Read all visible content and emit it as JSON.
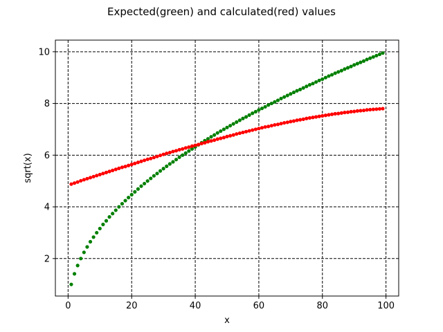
{
  "chart_data": {
    "type": "scatter",
    "title": "Expected(green) and calculated(red) values",
    "xlabel": "x",
    "ylabel": "sqrt(x)",
    "xlim": [
      -4,
      104
    ],
    "ylim": [
      0.55,
      10.45
    ],
    "xticks": [
      0,
      20,
      40,
      60,
      80,
      100
    ],
    "yticks": [
      2,
      4,
      6,
      8,
      10
    ],
    "xtick_labels": [
      "0",
      "20",
      "40",
      "60",
      "80",
      "100"
    ],
    "ytick_labels": [
      "2",
      "4",
      "6",
      "8",
      "10"
    ],
    "grid": true,
    "grid_style": "dashed",
    "x": [
      1,
      2,
      3,
      4,
      5,
      6,
      7,
      8,
      9,
      10,
      11,
      12,
      13,
      14,
      15,
      16,
      17,
      18,
      19,
      20,
      21,
      22,
      23,
      24,
      25,
      26,
      27,
      28,
      29,
      30,
      31,
      32,
      33,
      34,
      35,
      36,
      37,
      38,
      39,
      40,
      41,
      42,
      43,
      44,
      45,
      46,
      47,
      48,
      49,
      50,
      51,
      52,
      53,
      54,
      55,
      56,
      57,
      58,
      59,
      60,
      61,
      62,
      63,
      64,
      65,
      66,
      67,
      68,
      69,
      70,
      71,
      72,
      73,
      74,
      75,
      76,
      77,
      78,
      79,
      80,
      81,
      82,
      83,
      84,
      85,
      86,
      87,
      88,
      89,
      90,
      91,
      92,
      93,
      94,
      95,
      96,
      97,
      98,
      99
    ],
    "series": [
      {
        "color": "#008000",
        "values": [
          1.0,
          1.41,
          1.73,
          2.0,
          2.24,
          2.45,
          2.65,
          2.83,
          3.0,
          3.16,
          3.32,
          3.46,
          3.61,
          3.74,
          3.87,
          4.0,
          4.12,
          4.24,
          4.36,
          4.47,
          4.58,
          4.69,
          4.8,
          4.9,
          5.0,
          5.1,
          5.2,
          5.29,
          5.39,
          5.48,
          5.57,
          5.66,
          5.74,
          5.83,
          5.92,
          6.0,
          6.08,
          6.16,
          6.24,
          6.32,
          6.4,
          6.48,
          6.56,
          6.63,
          6.71,
          6.78,
          6.86,
          6.93,
          7.0,
          7.07,
          7.14,
          7.21,
          7.28,
          7.35,
          7.42,
          7.48,
          7.55,
          7.62,
          7.68,
          7.75,
          7.81,
          7.87,
          7.94,
          8.0,
          8.06,
          8.12,
          8.19,
          8.25,
          8.31,
          8.37,
          8.43,
          8.49,
          8.54,
          8.6,
          8.66,
          8.72,
          8.77,
          8.83,
          8.89,
          8.94,
          9.0,
          9.06,
          9.11,
          9.17,
          9.22,
          9.27,
          9.33,
          9.38,
          9.43,
          9.49,
          9.54,
          9.59,
          9.64,
          9.7,
          9.75,
          9.8,
          9.85,
          9.9,
          9.95
        ]
      },
      {
        "color": "#ff0000",
        "values": [
          4.88,
          4.92,
          4.96,
          5.01,
          5.05,
          5.09,
          5.13,
          5.17,
          5.21,
          5.25,
          5.29,
          5.33,
          5.37,
          5.41,
          5.45,
          5.49,
          5.53,
          5.56,
          5.6,
          5.64,
          5.68,
          5.72,
          5.76,
          5.8,
          5.84,
          5.87,
          5.91,
          5.95,
          5.99,
          6.03,
          6.07,
          6.1,
          6.14,
          6.17,
          6.21,
          6.24,
          6.28,
          6.31,
          6.35,
          6.38,
          6.41,
          6.45,
          6.48,
          6.52,
          6.55,
          6.58,
          6.62,
          6.65,
          6.68,
          6.72,
          6.75,
          6.78,
          6.82,
          6.85,
          6.88,
          6.91,
          6.94,
          6.97,
          7.0,
          7.03,
          7.06,
          7.09,
          7.11,
          7.14,
          7.17,
          7.19,
          7.22,
          7.25,
          7.27,
          7.3,
          7.32,
          7.35,
          7.37,
          7.39,
          7.42,
          7.44,
          7.46,
          7.48,
          7.5,
          7.52,
          7.54,
          7.56,
          7.58,
          7.6,
          7.61,
          7.63,
          7.65,
          7.66,
          7.68,
          7.69,
          7.71,
          7.72,
          7.73,
          7.75,
          7.76,
          7.77,
          7.78,
          7.79,
          7.8
        ]
      }
    ]
  }
}
